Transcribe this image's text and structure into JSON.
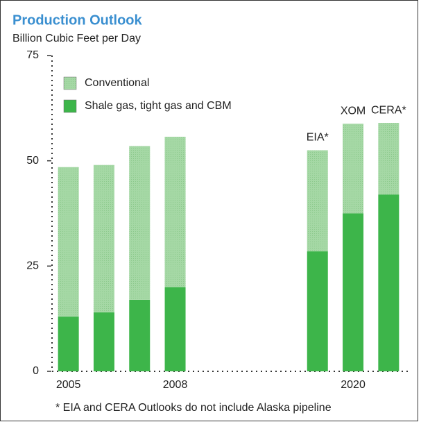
{
  "chart_data": {
    "type": "stacked_bar",
    "title": "Production Outlook",
    "subtitle": "Billion Cubic Feet per Day",
    "categories": [
      "2005",
      null,
      null,
      "2008",
      null,
      null,
      null,
      null,
      "2020",
      null
    ],
    "bar_labels": [
      null,
      null,
      null,
      null,
      null,
      null,
      null,
      "EIA*",
      "XOM",
      "CERA*"
    ],
    "series": [
      {
        "name": "Conventional",
        "color": "#a5d8a5",
        "values": [
          35.5,
          35,
          36.5,
          35.7,
          null,
          null,
          null,
          24,
          21.3,
          17
        ]
      },
      {
        "name": "Shale gas, tight gas and CBM",
        "color": "#3db54a",
        "values": [
          13,
          14,
          17,
          20,
          null,
          null,
          null,
          28.5,
          37.5,
          42
        ]
      }
    ],
    "ylim": [
      0,
      75
    ],
    "yticks": [
      0,
      25,
      50,
      75
    ],
    "footnote": "* EIA and CERA Outlooks do not include Alaska pipeline"
  }
}
